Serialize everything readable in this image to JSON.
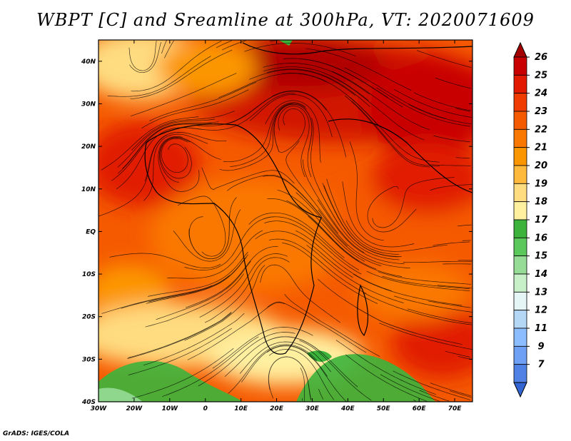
{
  "title": "WBPT [C] and Sreamline at 300hPa, VT: 2020071609",
  "footer": "GrADS: IGES/COLA",
  "map": {
    "lon_labels": [
      "30W",
      "20W",
      "10W",
      "0",
      "10E",
      "20E",
      "30E",
      "40E",
      "50E",
      "60E",
      "70E"
    ],
    "lat_labels": [
      "40N",
      "30N",
      "20N",
      "10N",
      "EQ",
      "10S",
      "20S",
      "30S",
      "40S"
    ],
    "lon_range": [
      -30,
      75
    ],
    "lat_range": [
      -40,
      45
    ]
  },
  "colorbar": {
    "labels": [
      "26",
      "25",
      "24",
      "23",
      "22",
      "21",
      "20",
      "19",
      "18",
      "17",
      "16",
      "15",
      "14",
      "13",
      "12",
      "11",
      "9",
      "7"
    ],
    "colors": [
      "#a50000",
      "#c80000",
      "#e11a00",
      "#f03c00",
      "#f55a00",
      "#fa7800",
      "#fc9600",
      "#ffb93c",
      "#ffdc80",
      "#fff0a0",
      "#3cb43c",
      "#5ac85a",
      "#96dc96",
      "#c8f0c8",
      "#e6f5f5",
      "#b4d7f5",
      "#8cbeff",
      "#6ea0f5",
      "#5082e6",
      "#3264d2"
    ]
  },
  "chart_data": {
    "type": "heatmap",
    "title": "WBPT [C] and Sreamline at 300hPa, VT: 2020071609",
    "variable": "WBPT [C]",
    "level": "300hPa",
    "valid_time": "2020071609",
    "x": [
      "30W",
      "20W",
      "10W",
      "0",
      "10E",
      "20E",
      "30E",
      "40E",
      "50E",
      "60E",
      "70E"
    ],
    "y": [
      "40N",
      "30N",
      "20N",
      "10N",
      "EQ",
      "10S",
      "20S",
      "30S",
      "40S"
    ],
    "xlim": [
      -30,
      75
    ],
    "ylim": [
      -40,
      45
    ],
    "legend_levels": [
      26,
      25,
      24,
      23,
      22,
      21,
      20,
      19,
      18,
      17,
      16,
      15,
      14,
      13,
      12,
      11,
      9,
      7
    ]
  }
}
